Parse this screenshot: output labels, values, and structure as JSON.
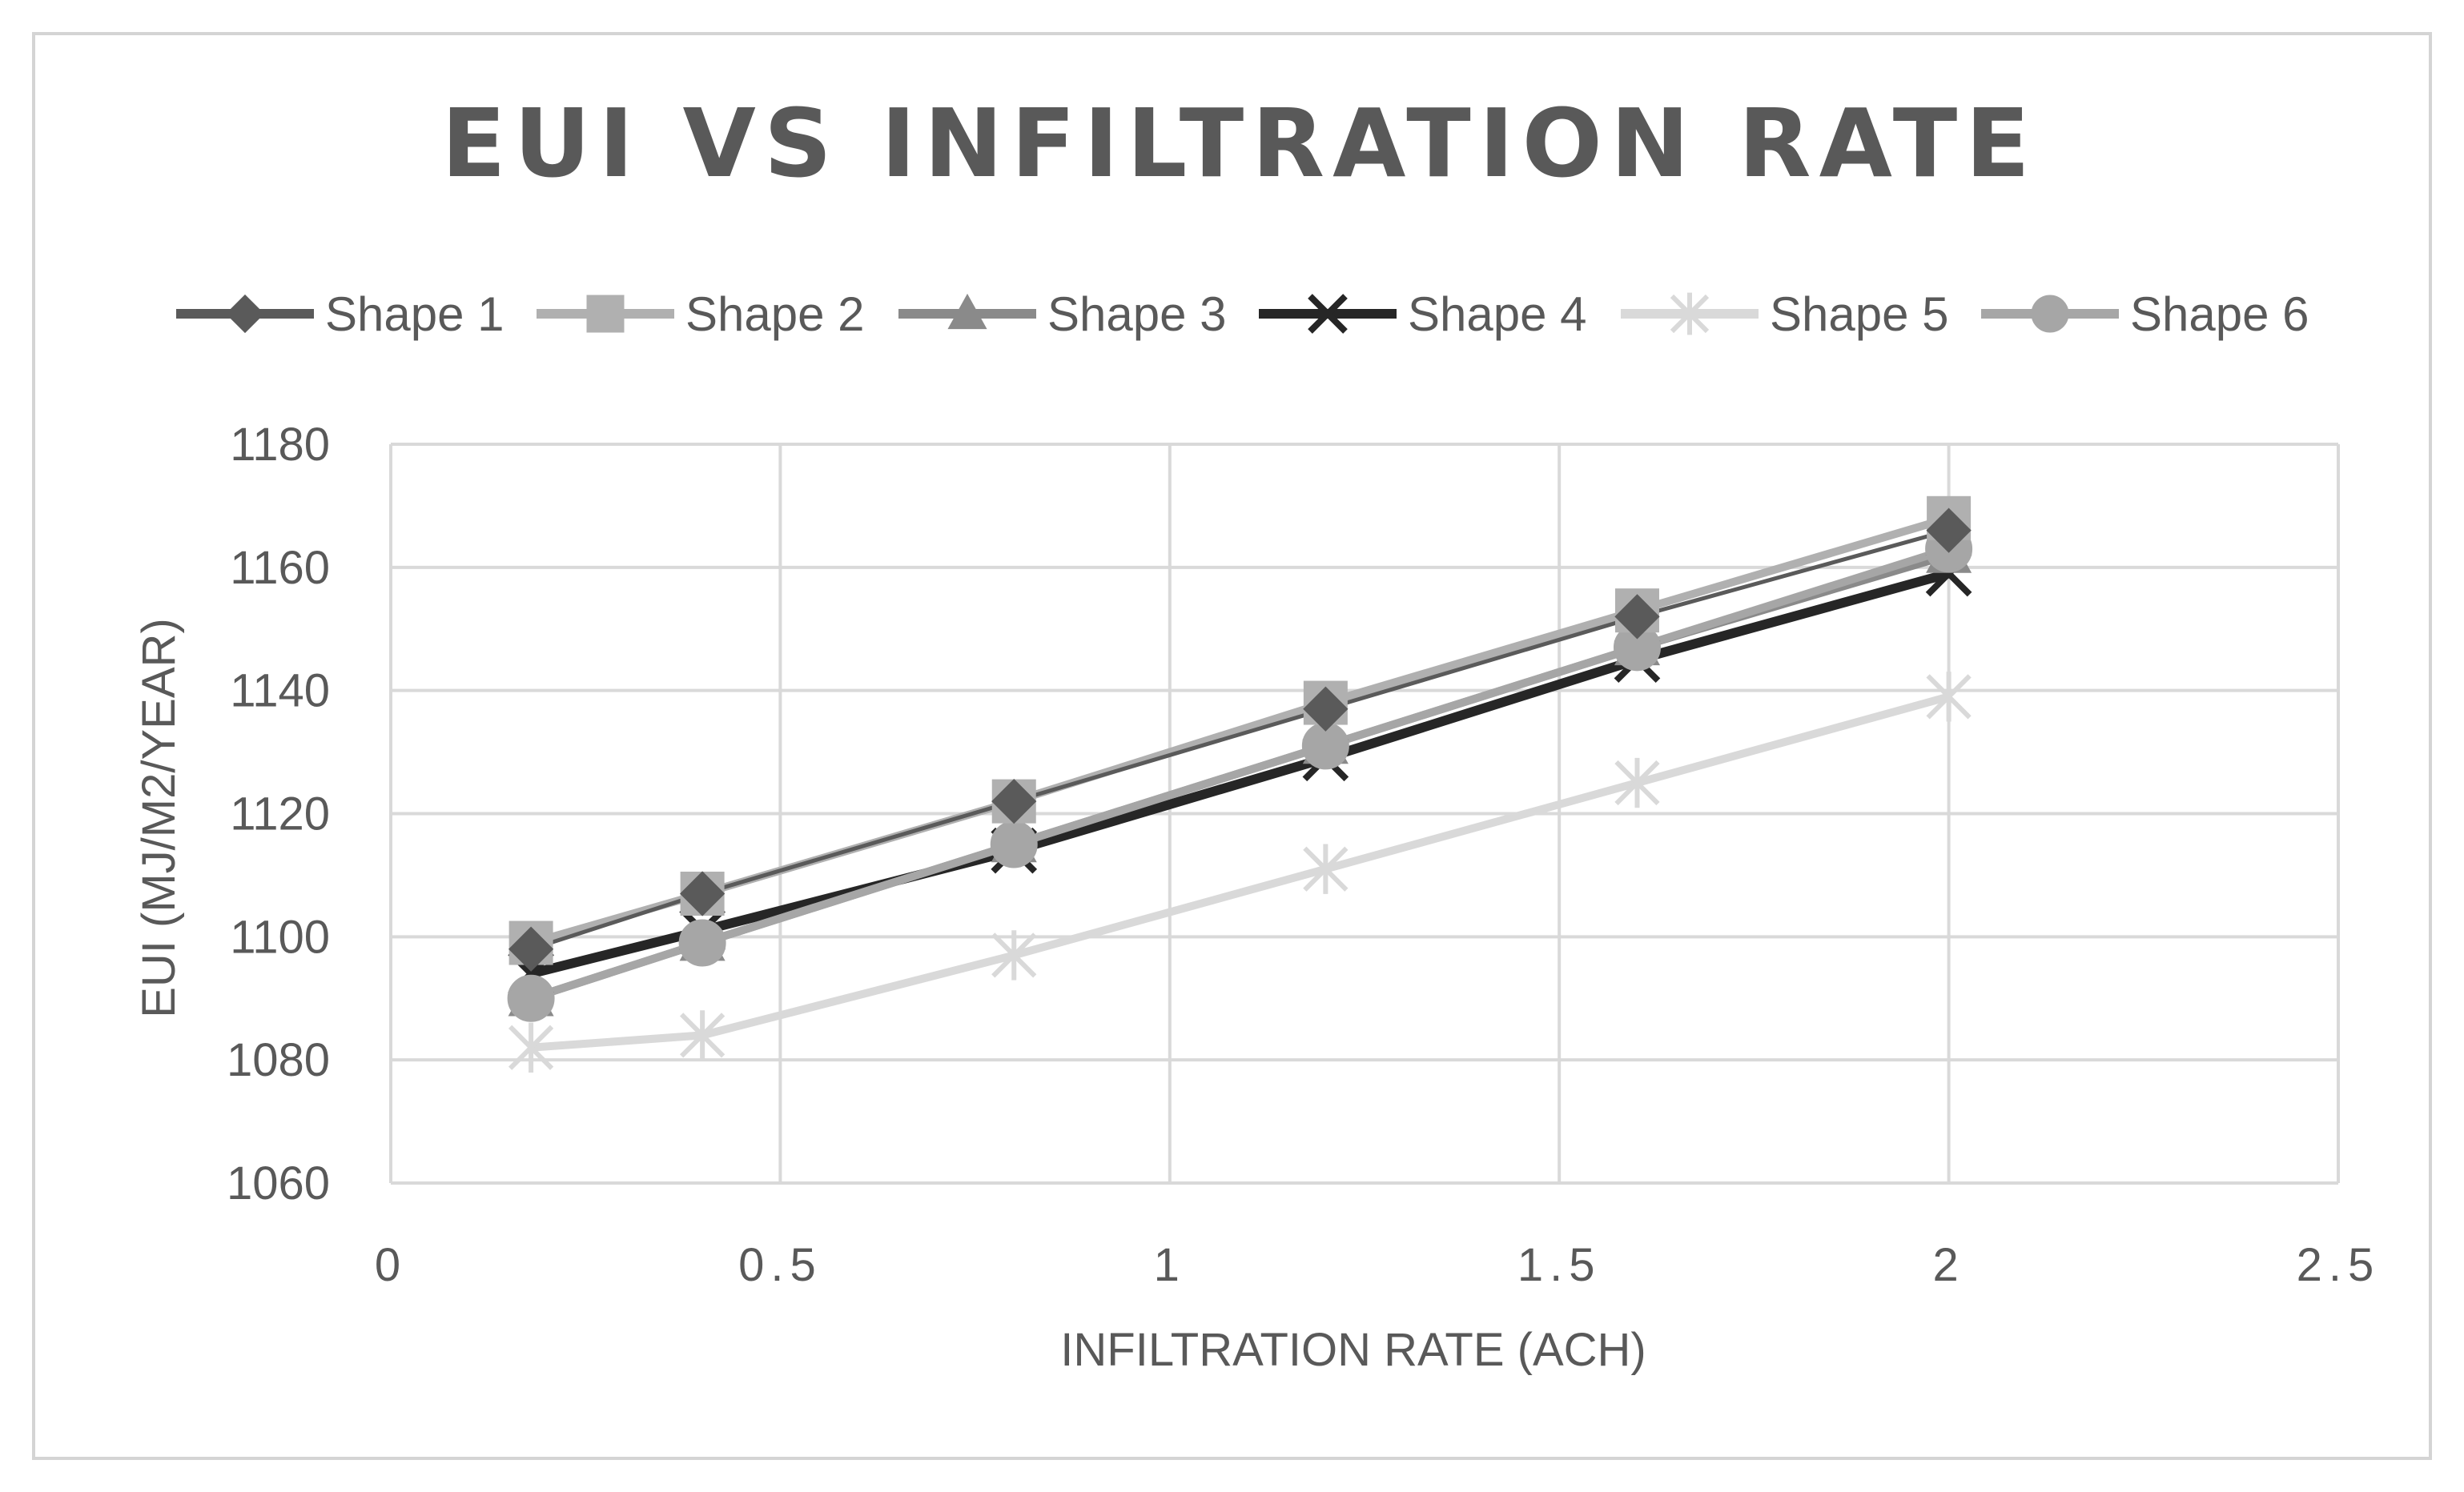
{
  "chart_data": {
    "type": "line",
    "title": "EUI VS INFILTRATION RATE",
    "xlabel": "INFILTRATION RATE (ACH)",
    "ylabel": "EUI (MJ/M2/YEAR)",
    "xlim": [
      0,
      2.5
    ],
    "ylim": [
      1060,
      1180
    ],
    "x_ticks": [
      "0",
      "0.5",
      "1",
      "1.5",
      "2",
      "2.5"
    ],
    "y_ticks": [
      "1060",
      "1080",
      "1100",
      "1120",
      "1140",
      "1160",
      "1180"
    ],
    "x_tick_values": [
      0,
      0.5,
      1,
      1.5,
      2,
      2.5
    ],
    "y_tick_values": [
      1060,
      1080,
      1100,
      1120,
      1140,
      1160,
      1180
    ],
    "grid": true,
    "legend_position": "top",
    "x": [
      0.18,
      0.4,
      0.8,
      1.2,
      1.6,
      2.0
    ],
    "series": [
      {
        "name": "Shape 1",
        "marker": "diamond",
        "color": "#5a5a5a",
        "values": [
          1098,
          1107,
          1122,
          1137,
          1152,
          1166
        ]
      },
      {
        "name": "Shape 2",
        "marker": "square",
        "color": "#b0b0b0",
        "values": [
          1099,
          1107,
          1122,
          1138,
          1153,
          1168
        ]
      },
      {
        "name": "Shape 3",
        "marker": "triangle",
        "color": "#8a8a8a",
        "values": [
          1090,
          1099,
          1115,
          1131,
          1147,
          1162
        ]
      },
      {
        "name": "Shape 4",
        "marker": "x",
        "color": "#262626",
        "values": [
          1094,
          1101,
          1114,
          1129,
          1145,
          1159
        ]
      },
      {
        "name": "Shape 5",
        "marker": "star",
        "color": "#d9d9d9",
        "values": [
          1082,
          1084,
          1097,
          1111,
          1125,
          1139
        ]
      },
      {
        "name": "Shape 6",
        "marker": "circle",
        "color": "#a6a6a6",
        "values": [
          1090,
          1099,
          1115,
          1131,
          1147,
          1163
        ]
      }
    ]
  }
}
